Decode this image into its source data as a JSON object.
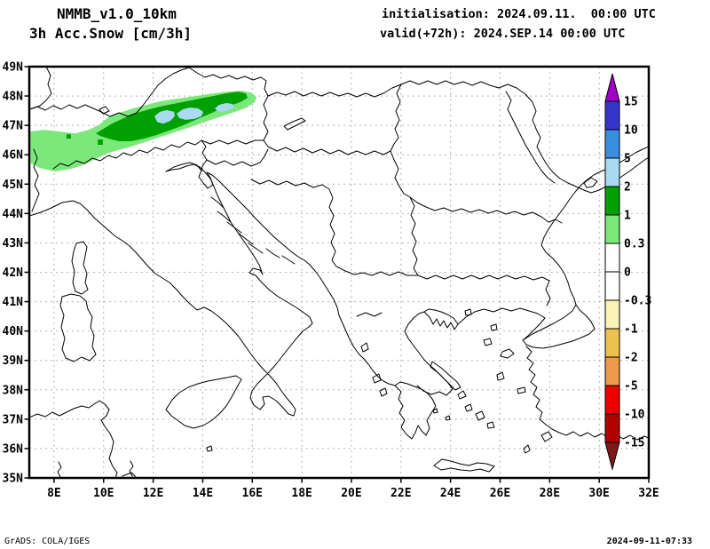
{
  "header": {
    "model": "NMMB_v1.0_10km",
    "variable": "3h Acc.Snow [cm/3h]",
    "init": "initialisation: 2024.09.11.  00:00 UTC",
    "valid": "valid(+72h): 2024.SEP.14 00:00 UTC"
  },
  "footer": {
    "left": "GrADS: COLA/IGES",
    "right": "2024-09-11-07:33"
  },
  "chart_data": {
    "type": "heatmap",
    "title": "NMMB_v1.0_10km 3h Acc.Snow [cm/3h]",
    "projection": {
      "lon_range": [
        7,
        32
      ],
      "lat_range": [
        35,
        49
      ]
    },
    "x_ticks": [
      "8E",
      "10E",
      "12E",
      "14E",
      "16E",
      "18E",
      "20E",
      "22E",
      "24E",
      "26E",
      "28E",
      "30E",
      "32E"
    ],
    "y_ticks": [
      "49N",
      "48N",
      "47N",
      "46N",
      "45N",
      "44N",
      "43N",
      "42N",
      "41N",
      "40N",
      "39N",
      "38N",
      "37N",
      "36N",
      "35N"
    ],
    "grid": true,
    "colorbar": {
      "levels": [
        "15",
        "10",
        "5",
        "2",
        "1",
        "0.3",
        "0",
        "-0.3",
        "-1",
        "-2",
        "-5",
        "-10",
        "-15"
      ],
      "segment_colors": [
        "#a000c8",
        "#3434cd",
        "#3a8ede",
        "#aad9f2",
        "#00a000",
        "#7ce87c",
        "#ffffff",
        "#ffffff",
        "#faf3b8",
        "#ecc24e",
        "#ee9a4a",
        "#ec0000",
        "#b20000",
        "#7c1a1a"
      ],
      "position": "right-inside"
    },
    "snow_contours": [
      {
        "level": "0.3-1",
        "color": "#7ce87c",
        "points": [
          [
            7.0,
            46.79
          ],
          [
            7.61,
            46.85
          ],
          [
            8.25,
            46.79
          ],
          [
            8.86,
            46.73
          ],
          [
            9.4,
            46.85
          ],
          [
            9.83,
            47.03
          ],
          [
            10.19,
            47.28
          ],
          [
            10.65,
            47.43
          ],
          [
            11.19,
            47.58
          ],
          [
            11.73,
            47.7
          ],
          [
            12.27,
            47.82
          ],
          [
            12.98,
            47.91
          ],
          [
            13.7,
            48.0
          ],
          [
            14.41,
            48.09
          ],
          [
            15.06,
            48.15
          ],
          [
            15.56,
            48.18
          ],
          [
            15.95,
            48.12
          ],
          [
            16.17,
            47.97
          ],
          [
            16.1,
            47.79
          ],
          [
            15.78,
            47.61
          ],
          [
            15.31,
            47.46
          ],
          [
            14.77,
            47.31
          ],
          [
            14.23,
            47.16
          ],
          [
            13.7,
            47.0
          ],
          [
            13.16,
            46.85
          ],
          [
            12.62,
            46.7
          ],
          [
            12.09,
            46.55
          ],
          [
            11.55,
            46.4
          ],
          [
            11.01,
            46.25
          ],
          [
            10.47,
            46.13
          ],
          [
            10.04,
            46.01
          ],
          [
            9.69,
            45.86
          ],
          [
            9.22,
            45.67
          ],
          [
            8.68,
            45.52
          ],
          [
            8.04,
            45.43
          ],
          [
            7.43,
            45.55
          ],
          [
            7.07,
            45.7
          ],
          [
            7.0,
            45.82
          ]
        ]
      },
      {
        "level": "1-2",
        "color": "#00a000",
        "points": [
          [
            9.69,
            46.73
          ],
          [
            10.04,
            46.91
          ],
          [
            10.4,
            47.09
          ],
          [
            10.83,
            47.25
          ],
          [
            11.26,
            47.4
          ],
          [
            11.73,
            47.52
          ],
          [
            12.27,
            47.64
          ],
          [
            12.8,
            47.73
          ],
          [
            13.34,
            47.82
          ],
          [
            13.88,
            47.91
          ],
          [
            14.41,
            48.0
          ],
          [
            14.95,
            48.09
          ],
          [
            15.42,
            48.15
          ],
          [
            15.74,
            48.09
          ],
          [
            15.81,
            47.94
          ],
          [
            15.52,
            47.79
          ],
          [
            15.09,
            47.67
          ],
          [
            14.63,
            47.52
          ],
          [
            14.13,
            47.34
          ],
          [
            13.63,
            47.16
          ],
          [
            13.12,
            46.97
          ],
          [
            12.62,
            46.82
          ],
          [
            12.12,
            46.67
          ],
          [
            11.62,
            46.55
          ],
          [
            11.12,
            46.46
          ],
          [
            10.62,
            46.46
          ],
          [
            10.19,
            46.55
          ],
          [
            9.86,
            46.64
          ]
        ]
      },
      {
        "level": "2-5",
        "color": "#aad9f2",
        "points": [
          [
            12.05,
            47.31
          ],
          [
            12.27,
            47.46
          ],
          [
            12.55,
            47.52
          ],
          [
            12.84,
            47.46
          ],
          [
            12.87,
            47.31
          ],
          [
            12.7,
            47.16
          ],
          [
            12.41,
            47.06
          ],
          [
            12.16,
            47.12
          ]
        ]
      },
      {
        "level": "2-5",
        "color": "#aad9f2",
        "points": [
          [
            12.95,
            47.4
          ],
          [
            13.2,
            47.55
          ],
          [
            13.48,
            47.61
          ],
          [
            13.81,
            47.58
          ],
          [
            14.02,
            47.46
          ],
          [
            13.95,
            47.31
          ],
          [
            13.66,
            47.22
          ],
          [
            13.3,
            47.19
          ],
          [
            13.05,
            47.25
          ]
        ]
      },
      {
        "level": "2-5",
        "color": "#aad9f2",
        "points": [
          [
            14.49,
            47.58
          ],
          [
            14.66,
            47.7
          ],
          [
            14.95,
            47.76
          ],
          [
            15.2,
            47.73
          ],
          [
            15.27,
            47.61
          ],
          [
            15.06,
            47.52
          ],
          [
            14.77,
            47.46
          ],
          [
            14.59,
            47.49
          ]
        ]
      },
      {
        "level": "1-2",
        "color": "#00a000",
        "points": [
          [
            8.5,
            46.7
          ],
          [
            8.68,
            46.7
          ],
          [
            8.68,
            46.55
          ],
          [
            8.5,
            46.55
          ]
        ]
      },
      {
        "level": "1-2",
        "color": "#00a000",
        "points": [
          [
            9.76,
            46.52
          ],
          [
            9.97,
            46.52
          ],
          [
            9.97,
            46.34
          ],
          [
            9.76,
            46.34
          ]
        ]
      }
    ]
  }
}
